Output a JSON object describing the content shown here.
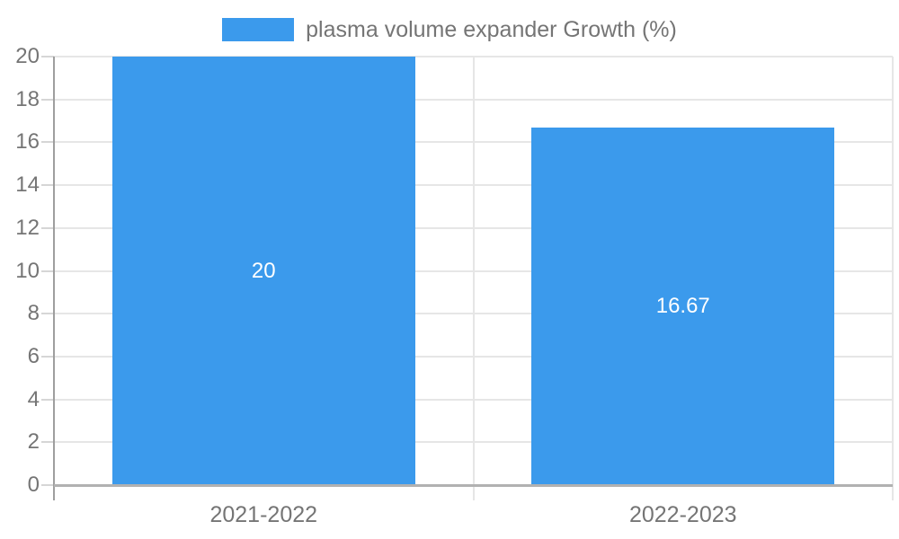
{
  "chart_data": {
    "type": "bar",
    "title": "",
    "legend_label": "plasma volume expander Growth (%)",
    "legend_position": "top-center",
    "categories": [
      "2021-2022",
      "2022-2023"
    ],
    "series": [
      {
        "name": "plasma volume expander Growth (%)",
        "values": [
          20,
          16.67
        ],
        "labels": [
          "20",
          "16.67"
        ],
        "color": "#3b9aec"
      }
    ],
    "ylim": [
      0,
      20
    ],
    "yticks": [
      0,
      2,
      4,
      6,
      8,
      10,
      12,
      14,
      16,
      18,
      20
    ],
    "grid": true,
    "colors": {
      "bar": "#3b9aec",
      "bar_label_text": "#ffffff",
      "gridline": "#e6e6e6",
      "tick_mark": "#d6d6d6",
      "x_axis_line": "#b1b1b1",
      "y_axis_line": "#9e9e9e",
      "tick_label_text": "#757575",
      "legend_text": "#757575",
      "background": "#ffffff"
    }
  }
}
